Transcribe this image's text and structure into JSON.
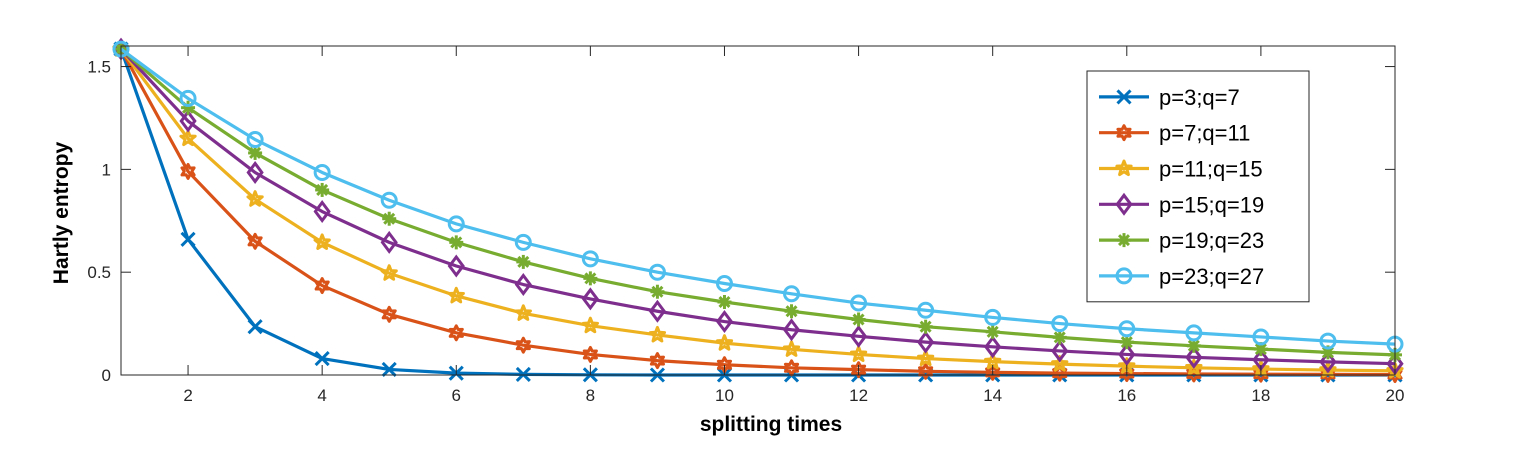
{
  "chart_data": {
    "type": "line",
    "title": "",
    "xlabel": "splitting times",
    "ylabel": "Hartly entropy",
    "xlim": [
      1,
      20
    ],
    "ylim": [
      0,
      1.6
    ],
    "xticks": [
      2,
      4,
      6,
      8,
      10,
      12,
      14,
      16,
      18,
      20
    ],
    "yticks": [
      0,
      0.5,
      1,
      1.5
    ],
    "ytick_labels": [
      "0",
      "0.5",
      "1",
      "1.5"
    ],
    "grid": false,
    "legend_position": "top-right",
    "x": [
      1,
      2,
      3,
      4,
      5,
      6,
      7,
      8,
      9,
      10,
      11,
      12,
      13,
      14,
      15,
      16,
      17,
      18,
      19,
      20
    ],
    "series": [
      {
        "name": "p=3;q=7",
        "color": "#0072BD",
        "marker": "x",
        "values": [
          1.585,
          0.66,
          0.235,
          0.08,
          0.027,
          0.009,
          0.003,
          0.001,
          0.0,
          0.0,
          0.0,
          0.0,
          0.0,
          0.0,
          0.0,
          0.0,
          0.0,
          0.0,
          0.0,
          0.0
        ]
      },
      {
        "name": "p=7;q=11",
        "color": "#D95319",
        "marker": "hexagram",
        "values": [
          1.585,
          0.99,
          0.65,
          0.435,
          0.295,
          0.205,
          0.145,
          0.1,
          0.07,
          0.05,
          0.035,
          0.026,
          0.018,
          0.013,
          0.009,
          0.007,
          0.005,
          0.004,
          0.003,
          0.002
        ]
      },
      {
        "name": "p=11;q=15",
        "color": "#EDB120",
        "marker": "pentagram",
        "values": [
          1.585,
          1.15,
          0.855,
          0.645,
          0.495,
          0.385,
          0.3,
          0.24,
          0.195,
          0.155,
          0.125,
          0.1,
          0.08,
          0.065,
          0.053,
          0.043,
          0.035,
          0.029,
          0.024,
          0.02
        ]
      },
      {
        "name": "p=15;q=19",
        "color": "#7E2F8E",
        "marker": "diamond",
        "values": [
          1.585,
          1.235,
          0.985,
          0.795,
          0.645,
          0.53,
          0.44,
          0.37,
          0.31,
          0.26,
          0.22,
          0.188,
          0.16,
          0.137,
          0.117,
          0.1,
          0.086,
          0.074,
          0.064,
          0.055
        ]
      },
      {
        "name": "p=19;q=23",
        "color": "#77AC30",
        "marker": "asterisk",
        "values": [
          1.585,
          1.3,
          1.08,
          0.9,
          0.76,
          0.645,
          0.55,
          0.47,
          0.405,
          0.355,
          0.31,
          0.27,
          0.235,
          0.21,
          0.183,
          0.16,
          0.142,
          0.126,
          0.11,
          0.098
        ]
      },
      {
        "name": "p=23;q=27",
        "color": "#4DBEEE",
        "marker": "circle",
        "values": [
          1.585,
          1.345,
          1.145,
          0.985,
          0.85,
          0.735,
          0.645,
          0.565,
          0.5,
          0.445,
          0.395,
          0.35,
          0.315,
          0.28,
          0.25,
          0.225,
          0.205,
          0.185,
          0.165,
          0.15
        ]
      }
    ]
  }
}
